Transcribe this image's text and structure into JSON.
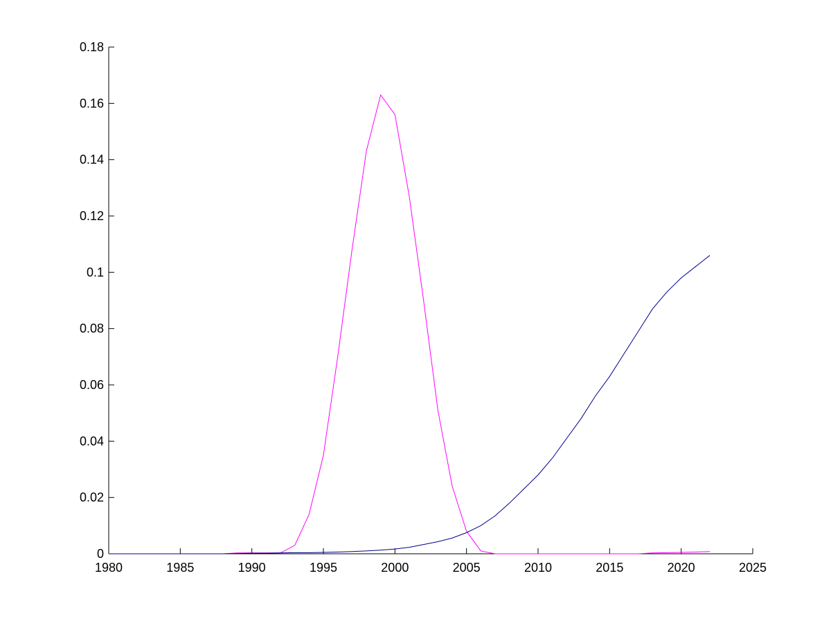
{
  "chart_data": {
    "type": "line",
    "x": [
      1980,
      1981,
      1982,
      1983,
      1984,
      1985,
      1986,
      1987,
      1988,
      1989,
      1990,
      1991,
      1992,
      1993,
      1994,
      1995,
      1996,
      1997,
      1998,
      1999,
      2000,
      2001,
      2002,
      2003,
      2004,
      2005,
      2006,
      2007,
      2008,
      2009,
      2010,
      2011,
      2012,
      2013,
      2014,
      2015,
      2016,
      2017,
      2018,
      2019,
      2020,
      2021,
      2022
    ],
    "series": [
      {
        "color": "#ff00ff",
        "values": [
          0,
          0,
          0,
          0,
          0,
          0,
          0,
          0,
          0,
          0.0003,
          0.0003,
          0.0003,
          0.0003,
          0.003,
          0.014,
          0.035,
          0.07,
          0.108,
          0.143,
          0.163,
          0.156,
          0.127,
          0.09,
          0.051,
          0.024,
          0.008,
          0.001,
          0,
          0,
          0,
          0,
          0,
          0,
          0,
          0,
          0,
          0,
          0,
          0.0003,
          0.0004,
          0.0005,
          0.0006,
          0.0008
        ]
      },
      {
        "color": "#00008b",
        "values": [
          0,
          0,
          0,
          0,
          0,
          0,
          0,
          0,
          0,
          0.0001,
          0.0002,
          0.0002,
          0.0003,
          0.0004,
          0.0004,
          0.0005,
          0.0006,
          0.0008,
          0.001,
          0.0013,
          0.0017,
          0.0023,
          0.0033,
          0.0043,
          0.0056,
          0.0075,
          0.01,
          0.0135,
          0.018,
          0.023,
          0.028,
          0.034,
          0.041,
          0.048,
          0.056,
          0.063,
          0.071,
          0.079,
          0.087,
          0.093,
          0.098,
          0.102,
          0.106
        ]
      }
    ],
    "xlim": [
      1980,
      2025
    ],
    "xticks": [
      1980,
      1985,
      1990,
      1995,
      2000,
      2005,
      2010,
      2015,
      2020,
      2025
    ],
    "ylim": [
      0,
      0.18
    ],
    "yticks": [
      0,
      0.02,
      0.04,
      0.06,
      0.08,
      0.1,
      0.12,
      0.14,
      0.16,
      0.18
    ],
    "grid": false
  }
}
